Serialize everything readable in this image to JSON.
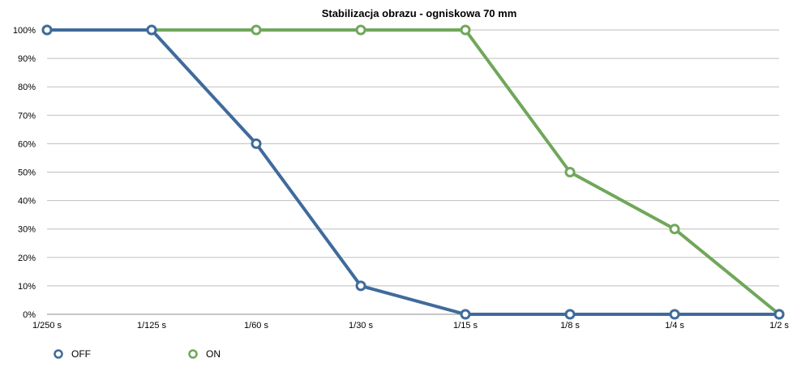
{
  "chart_data": {
    "type": "line",
    "title": "Stabilizacja obrazu - ogniskowa 70 mm",
    "xlabel": "",
    "ylabel": "",
    "categories": [
      "1/250 s",
      "1/125 s",
      "1/60 s",
      "1/30 s",
      "1/15 s",
      "1/8 s",
      "1/4 s",
      "1/2 s"
    ],
    "y_ticks": [
      "0%",
      "10%",
      "20%",
      "30%",
      "40%",
      "50%",
      "60%",
      "70%",
      "80%",
      "90%",
      "100%"
    ],
    "ylim": [
      0,
      100
    ],
    "grid": true,
    "legend_position": "bottom-left",
    "series": [
      {
        "name": "OFF",
        "color": "#3f6b9b",
        "values": [
          100,
          100,
          60,
          10,
          0,
          0,
          0,
          0
        ]
      },
      {
        "name": "ON",
        "color": "#6fa75a",
        "values": [
          100,
          100,
          100,
          100,
          100,
          50,
          30,
          0
        ]
      }
    ]
  }
}
